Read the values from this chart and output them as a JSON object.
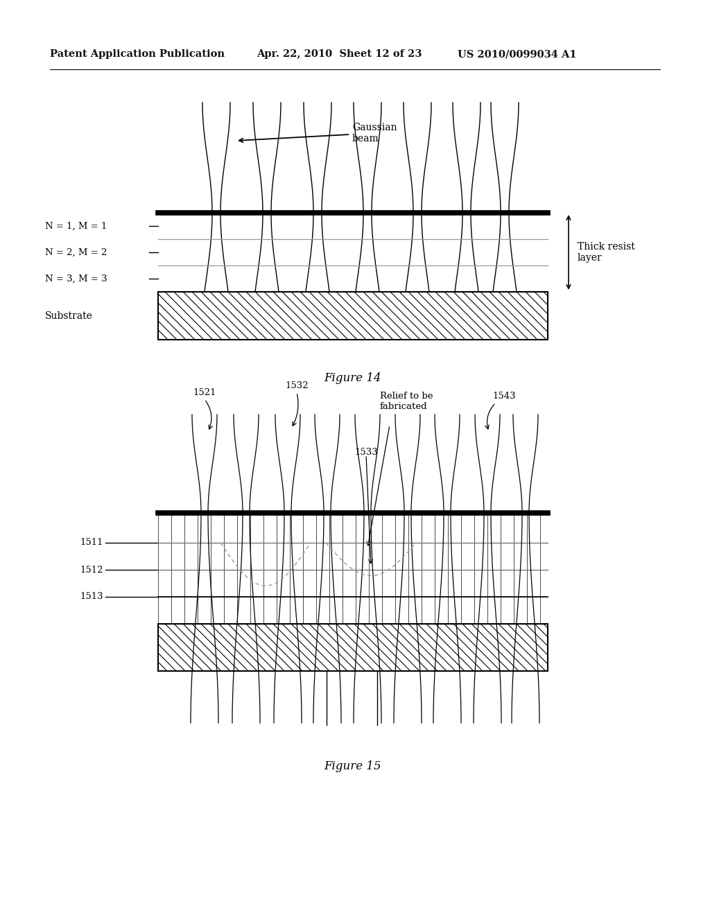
{
  "bg_color": "#ffffff",
  "header_left": "Patent Application Publication",
  "header_center": "Apr. 22, 2010  Sheet 12 of 23",
  "header_right": "US 2010/0099034 A1",
  "fig14_caption": "Figure 14",
  "fig15_caption": "Figure 15",
  "label_gaussian": "Gaussian\nbeam",
  "label_thick_resist": "Thick resist\nlayer",
  "label_substrate": "Substrate",
  "label_N1": "N = 1, M = 1",
  "label_N2": "N = 2, M = 2",
  "label_N3": "N = 3, M = 3",
  "label_1511": "1511",
  "label_1512": "1512",
  "label_1513": "1513",
  "label_1521": "1521",
  "label_1532": "1532",
  "label_1533": "1533",
  "label_1543": "1543",
  "label_relief": "Relief to be\nfabricated"
}
